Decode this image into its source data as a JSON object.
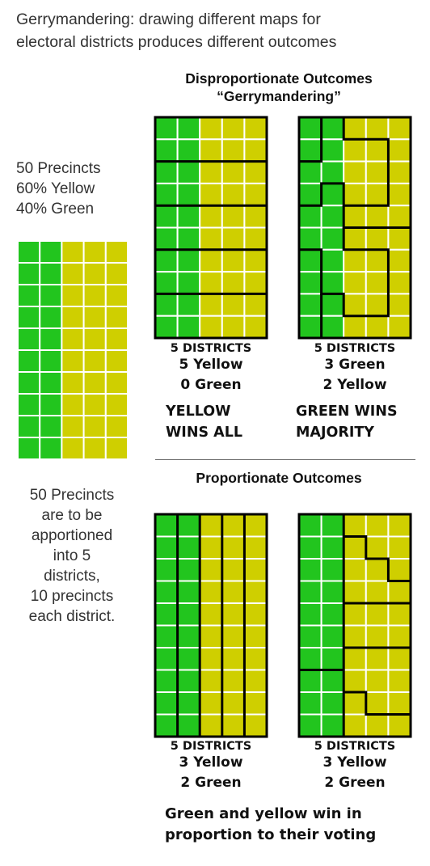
{
  "title_lines": [
    "Gerrymandering: drawing different maps for",
    "electoral districts produces different outcomes"
  ],
  "disproportionate": {
    "heading_line1": "Disproportionate Outcomes",
    "heading_line2": "“Gerrymandering”",
    "map_a": {
      "districts": "5 DISTRICTS",
      "line1": "5 Yellow",
      "line2": "0 Green",
      "result1": "YELLOW",
      "result2": "WINS ALL"
    },
    "map_b": {
      "districts": "5 DISTRICTS",
      "line1": "3 Green",
      "line2": "2 Yellow",
      "result1": "GREEN WINS",
      "result2": "MAJORITY"
    }
  },
  "proportionate": {
    "heading": "Proportionate Outcomes",
    "map_c": {
      "districts": "5 DISTRICTS",
      "line1": "3 Yellow",
      "line2": "2 Green"
    },
    "map_d": {
      "districts": "5 DISTRICTS",
      "line1": "3 Yellow",
      "line2": "2 Green"
    },
    "footer_line1": "Green and yellow win in",
    "footer_line2": "proportion to their voting"
  },
  "precinct_summary": [
    "50 Precincts",
    "60% Yellow",
    "40% Green"
  ],
  "apportion_text": [
    "50 Precincts",
    "are to be",
    "apportioned",
    "into 5",
    "districts,",
    "10 precincts",
    "each district."
  ],
  "colors": {
    "green": "#22c51e",
    "yellow": "#cfcf00",
    "border": "#000000",
    "cell_line": "#ffffff"
  }
}
